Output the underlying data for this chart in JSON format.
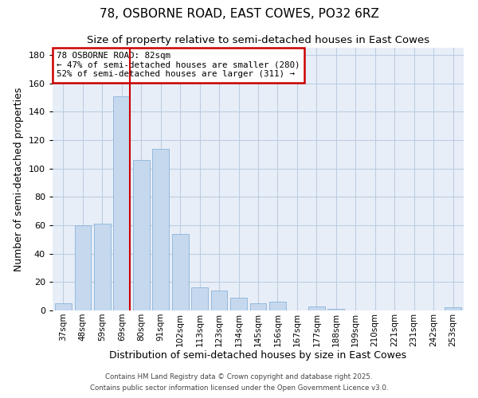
{
  "title": "78, OSBORNE ROAD, EAST COWES, PO32 6RZ",
  "subtitle": "Size of property relative to semi-detached houses in East Cowes",
  "xlabel": "Distribution of semi-detached houses by size in East Cowes",
  "ylabel": "Number of semi-detached properties",
  "bar_labels": [
    "37sqm",
    "48sqm",
    "59sqm",
    "69sqm",
    "80sqm",
    "91sqm",
    "102sqm",
    "113sqm",
    "123sqm",
    "134sqm",
    "145sqm",
    "156sqm",
    "167sqm",
    "177sqm",
    "188sqm",
    "199sqm",
    "210sqm",
    "221sqm",
    "231sqm",
    "242sqm",
    "253sqm"
  ],
  "bar_values": [
    5,
    60,
    61,
    151,
    106,
    114,
    54,
    16,
    14,
    9,
    5,
    6,
    0,
    3,
    1,
    0,
    0,
    0,
    0,
    0,
    2
  ],
  "bar_color": "#C5D8EE",
  "bar_edgecolor": "#8BB4D8",
  "highlight_index": 3,
  "highlight_line_color": "#CC0000",
  "annotation_text": "78 OSBORNE ROAD: 82sqm\n← 47% of semi-detached houses are smaller (280)\n52% of semi-detached houses are larger (311) →",
  "annotation_box_edgecolor": "#CC0000",
  "annotation_box_facecolor": "#FFFFFF",
  "ylim": [
    0,
    185
  ],
  "yticks": [
    0,
    20,
    40,
    60,
    80,
    100,
    120,
    140,
    160,
    180
  ],
  "footer1": "Contains HM Land Registry data © Crown copyright and database right 2025.",
  "footer2": "Contains public sector information licensed under the Open Government Licence v3.0.",
  "bg_color": "#FFFFFF",
  "plot_bg_color": "#E8EEF8",
  "grid_color": "#BDCDE0",
  "title_fontsize": 11,
  "subtitle_fontsize": 9.5
}
